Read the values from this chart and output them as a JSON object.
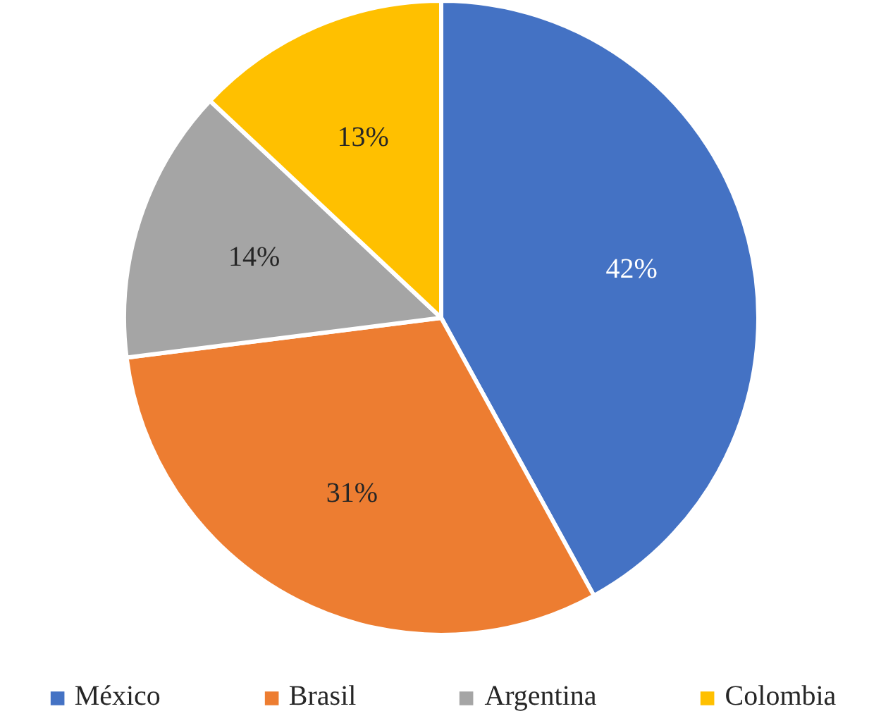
{
  "chart_data": {
    "type": "pie",
    "categories": [
      "México",
      "Brasil",
      "Argentina",
      "Colombia"
    ],
    "values": [
      42,
      31,
      14,
      13
    ],
    "colors": [
      "#4472c4",
      "#ed7d31",
      "#a5a5a5",
      "#ffc000"
    ],
    "value_labels": [
      "42%",
      "31%",
      "14%",
      "13%"
    ],
    "legend": "bottom"
  }
}
